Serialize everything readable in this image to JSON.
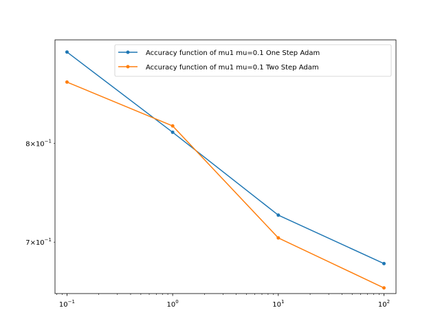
{
  "chart_data": {
    "type": "line",
    "x_scale": "log",
    "y_scale": "log",
    "grid": false,
    "legend_position": "top-right",
    "x": [
      0.1,
      1,
      10,
      100
    ],
    "xlim": [
      0.077,
      130
    ],
    "ylim": [
      0.653,
      0.92
    ],
    "x_ticks": [
      {
        "value": 0.1,
        "base": "10",
        "exp": "−1"
      },
      {
        "value": 1,
        "base": "10",
        "exp": "0"
      },
      {
        "value": 10,
        "base": "10",
        "exp": "1"
      },
      {
        "value": 100,
        "base": "10",
        "exp": "2"
      }
    ],
    "y_ticks": [
      {
        "value": 0.8,
        "mant": "8",
        "base": "10",
        "exp": "−1"
      },
      {
        "value": 0.7,
        "mant": "7",
        "base": "10",
        "exp": "−1"
      }
    ],
    "series": [
      {
        "name": "Accuracy function of mu1 mu=0.1 One Step Adam",
        "color": "#1f77b4",
        "values": [
          0.905,
          0.812,
          0.726,
          0.68
        ]
      },
      {
        "name": "Accuracy function of mu1 mu=0.1 Two Step Adam",
        "color": "#ff7f0e",
        "values": [
          0.869,
          0.819,
          0.704,
          0.658
        ]
      }
    ]
  }
}
